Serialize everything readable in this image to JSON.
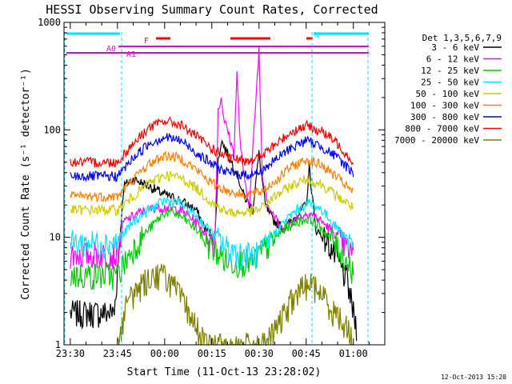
{
  "chart_data": {
    "type": "line",
    "title": "HESSI Observing Summary Count Rates, Corrected",
    "xlabel": "Start Time (11-Oct-13 23:28:02)",
    "ylabel": "Corrected Count Rate (s⁻¹ detector⁻¹)",
    "x_unit": "minutes",
    "xlim": [
      -2,
      100
    ],
    "ylim": [
      1,
      1000
    ],
    "yscale": "log",
    "x_ticks": [
      {
        "label": "23:30",
        "t": 0
      },
      {
        "label": "23:45",
        "t": 15
      },
      {
        "label": "00:00",
        "t": 30
      },
      {
        "label": "00:15",
        "t": 45
      },
      {
        "label": "00:30",
        "t": 60
      },
      {
        "label": "00:45",
        "t": 75
      },
      {
        "label": "01:00",
        "t": 90
      }
    ],
    "y_ticks": [
      {
        "label": "1",
        "v": 1
      },
      {
        "label": "10",
        "v": 10
      },
      {
        "label": "100",
        "v": 100
      },
      {
        "label": "1000",
        "v": 1000
      }
    ],
    "legend_title": "Det 1,3,5,6,7,9",
    "legend_position": "top-right",
    "series": [
      {
        "name": "3 - 6 keV",
        "color": "#000000",
        "points": [
          [
            0,
            2
          ],
          [
            14,
            2
          ],
          [
            15,
            5
          ],
          [
            17,
            30
          ],
          [
            20,
            35
          ],
          [
            25,
            30
          ],
          [
            30,
            25
          ],
          [
            35,
            22
          ],
          [
            40,
            18
          ],
          [
            43,
            12
          ],
          [
            46,
            10
          ],
          [
            47,
            50
          ],
          [
            48,
            80
          ],
          [
            50,
            60
          ],
          [
            53,
            40
          ],
          [
            55,
            25
          ],
          [
            58,
            18
          ],
          [
            60,
            60
          ],
          [
            62,
            20
          ],
          [
            64,
            15
          ],
          [
            68,
            12
          ],
          [
            72,
            16
          ],
          [
            75,
            20
          ],
          [
            76,
            45
          ],
          [
            78,
            12
          ],
          [
            82,
            9
          ],
          [
            85,
            6
          ],
          [
            88,
            4
          ],
          [
            90,
            2
          ],
          [
            91,
            1.5
          ]
        ]
      },
      {
        "name": "6 - 12 keV",
        "color": "#ff00ff",
        "points": [
          [
            0,
            7
          ],
          [
            15,
            7
          ],
          [
            17,
            14
          ],
          [
            22,
            17
          ],
          [
            27,
            19
          ],
          [
            30,
            19
          ],
          [
            35,
            18
          ],
          [
            40,
            14
          ],
          [
            44,
            10
          ],
          [
            46,
            9
          ],
          [
            47,
            150
          ],
          [
            48,
            200
          ],
          [
            49,
            120
          ],
          [
            50,
            100
          ],
          [
            52,
            60
          ],
          [
            53,
            330
          ],
          [
            54,
            80
          ],
          [
            55,
            40
          ],
          [
            57,
            20
          ],
          [
            60,
            580
          ],
          [
            61,
            40
          ],
          [
            63,
            20
          ],
          [
            67,
            12
          ],
          [
            72,
            15
          ],
          [
            76,
            17
          ],
          [
            80,
            14
          ],
          [
            84,
            11
          ],
          [
            88,
            8
          ],
          [
            90,
            7
          ]
        ]
      },
      {
        "name": "12 - 25 keV",
        "color": "#00cc00",
        "points": [
          [
            0,
            4.5
          ],
          [
            15,
            4.5
          ],
          [
            20,
            8
          ],
          [
            25,
            12
          ],
          [
            30,
            17
          ],
          [
            33,
            17
          ],
          [
            36,
            15
          ],
          [
            40,
            12
          ],
          [
            45,
            8
          ],
          [
            50,
            6
          ],
          [
            55,
            6
          ],
          [
            58,
            6
          ],
          [
            60,
            7
          ],
          [
            64,
            9
          ],
          [
            68,
            12
          ],
          [
            72,
            14
          ],
          [
            76,
            15
          ],
          [
            80,
            12
          ],
          [
            84,
            9
          ],
          [
            88,
            6
          ],
          [
            90,
            5
          ]
        ]
      },
      {
        "name": "25 - 50 keV",
        "color": "#00e5ff",
        "points": [
          [
            0,
            9
          ],
          [
            15,
            9
          ],
          [
            20,
            14
          ],
          [
            25,
            18
          ],
          [
            30,
            22
          ],
          [
            35,
            21
          ],
          [
            40,
            16
          ],
          [
            45,
            11
          ],
          [
            50,
            8
          ],
          [
            55,
            7
          ],
          [
            60,
            7
          ],
          [
            64,
            10
          ],
          [
            68,
            14
          ],
          [
            72,
            18
          ],
          [
            76,
            21
          ],
          [
            80,
            18
          ],
          [
            84,
            13
          ],
          [
            88,
            10
          ],
          [
            90,
            9
          ]
        ]
      },
      {
        "name": "50 - 100 keV",
        "color": "#cccc00",
        "points": [
          [
            0,
            18
          ],
          [
            15,
            18
          ],
          [
            20,
            24
          ],
          [
            25,
            32
          ],
          [
            30,
            38
          ],
          [
            35,
            36
          ],
          [
            40,
            29
          ],
          [
            45,
            21
          ],
          [
            50,
            17
          ],
          [
            55,
            17
          ],
          [
            60,
            18
          ],
          [
            65,
            24
          ],
          [
            70,
            30
          ],
          [
            75,
            35
          ],
          [
            80,
            31
          ],
          [
            85,
            24
          ],
          [
            90,
            19
          ]
        ]
      },
      {
        "name": "100 - 300 keV",
        "color": "#ff7f00",
        "points": [
          [
            0,
            24
          ],
          [
            15,
            24
          ],
          [
            20,
            35
          ],
          [
            25,
            48
          ],
          [
            30,
            58
          ],
          [
            35,
            55
          ],
          [
            40,
            43
          ],
          [
            45,
            32
          ],
          [
            50,
            27
          ],
          [
            55,
            25
          ],
          [
            60,
            26
          ],
          [
            65,
            33
          ],
          [
            70,
            45
          ],
          [
            75,
            53
          ],
          [
            80,
            47
          ],
          [
            85,
            36
          ],
          [
            90,
            26
          ]
        ]
      },
      {
        "name": "300 - 800 keV",
        "color": "#0000ff",
        "points": [
          [
            0,
            37
          ],
          [
            15,
            37
          ],
          [
            20,
            55
          ],
          [
            25,
            75
          ],
          [
            30,
            86
          ],
          [
            35,
            80
          ],
          [
            40,
            62
          ],
          [
            45,
            48
          ],
          [
            50,
            40
          ],
          [
            55,
            38
          ],
          [
            60,
            40
          ],
          [
            65,
            52
          ],
          [
            70,
            68
          ],
          [
            75,
            80
          ],
          [
            80,
            70
          ],
          [
            85,
            55
          ],
          [
            90,
            40
          ]
        ]
      },
      {
        "name": "800 - 7000 keV",
        "color": "#ff0000",
        "points": [
          [
            0,
            50
          ],
          [
            15,
            50
          ],
          [
            20,
            75
          ],
          [
            25,
            105
          ],
          [
            30,
            122
          ],
          [
            35,
            112
          ],
          [
            40,
            88
          ],
          [
            45,
            67
          ],
          [
            50,
            55
          ],
          [
            55,
            52
          ],
          [
            60,
            55
          ],
          [
            65,
            72
          ],
          [
            70,
            95
          ],
          [
            75,
            110
          ],
          [
            80,
            97
          ],
          [
            85,
            75
          ],
          [
            90,
            50
          ]
        ]
      },
      {
        "name": "7000 - 20000 keV",
        "color": "#808000",
        "points": [
          [
            15,
            1
          ],
          [
            18,
            2.5
          ],
          [
            22,
            3.5
          ],
          [
            26,
            4.5
          ],
          [
            30,
            4.5
          ],
          [
            33,
            3.5
          ],
          [
            36,
            2.5
          ],
          [
            40,
            1.5
          ],
          [
            43,
            1
          ],
          [
            62,
            1
          ],
          [
            66,
            1.5
          ],
          [
            70,
            2.5
          ],
          [
            74,
            3.5
          ],
          [
            76,
            3.8
          ],
          [
            80,
            3
          ],
          [
            84,
            2
          ],
          [
            88,
            1.5
          ],
          [
            90,
            1
          ]
        ]
      }
    ],
    "annotations": [
      {
        "label": "N",
        "color": "#00e5ff"
      },
      {
        "label": "F",
        "color": "#ff0000"
      },
      {
        "label": "A0",
        "color": "#e000e0"
      },
      {
        "label": "A1",
        "color": "#e000e0"
      }
    ]
  },
  "footer": {
    "timestamp": "12-Oct-2013 15:20"
  }
}
